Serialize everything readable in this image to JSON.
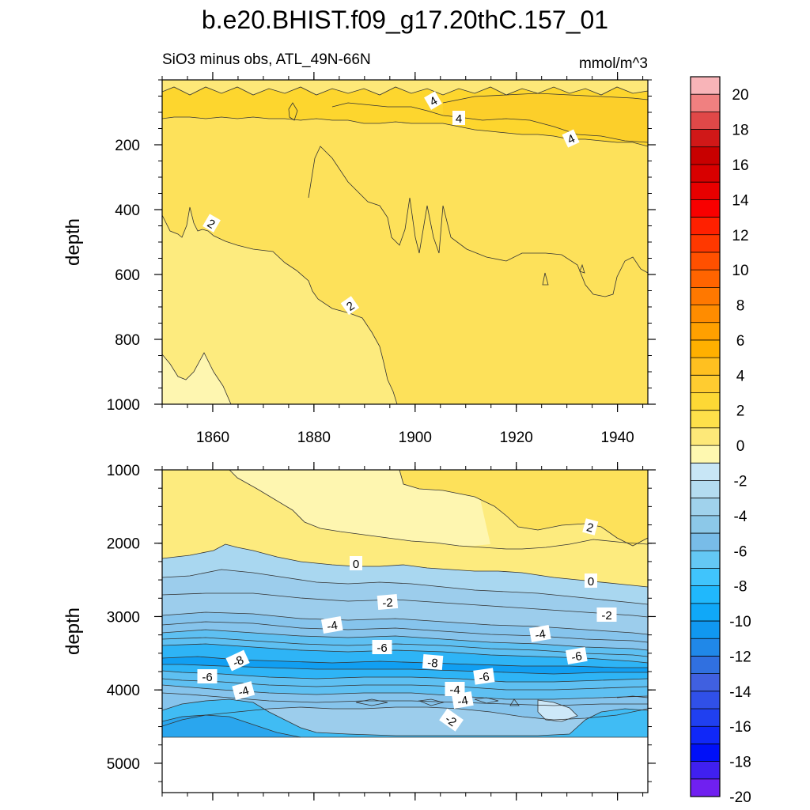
{
  "chart_data": {
    "type": "heatmap",
    "title": "b.e20.BHIST.f09_g17.20thC.157_01",
    "subtitle": "SiO3 minus obs, ATL_49N-66N",
    "units": "mmol/m^3",
    "ylabel": "depth",
    "xlim": [
      1850,
      1946
    ],
    "x_ticks": [
      1860,
      1880,
      1900,
      1920,
      1940
    ],
    "x_tick_labels": [
      "1860",
      "1880",
      "1900",
      "1920",
      "1940"
    ],
    "panels": [
      {
        "name": "upper",
        "ylim": [
          0,
          1000
        ],
        "y_ticks": [
          200,
          400,
          600,
          800,
          1000
        ],
        "y_tick_labels": [
          "200",
          "400",
          "600",
          "800",
          "1000"
        ],
        "contour_labels": [
          "4",
          "4",
          "4",
          "2",
          "2"
        ]
      },
      {
        "name": "lower",
        "ylim": [
          1000,
          5400
        ],
        "y_ticks": [
          1000,
          2000,
          3000,
          4000,
          5000
        ],
        "y_tick_labels": [
          "1000",
          "2000",
          "3000",
          "4000",
          "5000"
        ],
        "contour_labels": [
          "2",
          "0",
          "0",
          "-2",
          "-2",
          "-4",
          "-4",
          "-6",
          "-6",
          "-8",
          "-8",
          "-6",
          "-6",
          "-4",
          "-4",
          "-4",
          "-2"
        ],
        "data_floor_depth": 4600
      }
    ],
    "colorbar": {
      "levels": [
        -20,
        -19,
        -18,
        -17,
        -16,
        -15,
        -14,
        -13,
        -12,
        -11,
        -10,
        -9,
        -8,
        -7,
        -6,
        -5,
        -4,
        -3,
        -2,
        -1,
        0,
        1,
        2,
        3,
        4,
        5,
        6,
        7,
        8,
        9,
        10,
        11,
        12,
        13,
        14,
        15,
        16,
        17,
        18,
        19,
        20
      ],
      "tick_labels": [
        "20",
        "18",
        "16",
        "14",
        "12",
        "10",
        "8",
        "6",
        "4",
        "2",
        "0",
        "-2",
        "-4",
        "-6",
        "-8",
        "-10",
        "-12",
        "-14",
        "-16",
        "-18",
        "-20"
      ],
      "colors_top_to_bottom": [
        "#f8b4b8",
        "#f08080",
        "#e04848",
        "#d01818",
        "#c80000",
        "#d80000",
        "#e80000",
        "#f80000",
        "#ff2000",
        "#ff3800",
        "#ff5000",
        "#ff6400",
        "#ff7800",
        "#ff8c00",
        "#ffa000",
        "#ffb000",
        "#ffc020",
        "#ffcc30",
        "#fdd835",
        "#fee04a",
        "#fde878",
        "#fef8b0",
        "#c8e6f6",
        "#b4dcf0",
        "#a0d2ec",
        "#8cc8e8",
        "#78bce8",
        "#64c8f4",
        "#40c4fc",
        "#20b8fc",
        "#10a8f8",
        "#1098f0",
        "#2088e8",
        "#3070e0",
        "#4060e0",
        "#3050e8",
        "#2040f0",
        "#1028f8",
        "#0010f8",
        "#4020f0",
        "#7020f0"
      ]
    }
  }
}
